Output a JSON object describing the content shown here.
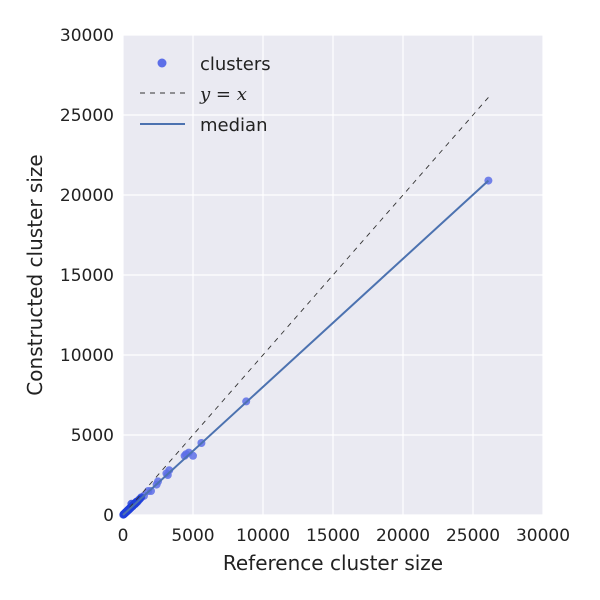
{
  "chart_data": {
    "type": "scatter",
    "xlabel": "Reference cluster size",
    "ylabel": "Constructed cluster size",
    "xlim": [
      0,
      30000
    ],
    "ylim": [
      0,
      30000
    ],
    "xticks": [
      0,
      5000,
      10000,
      15000,
      20000,
      25000,
      30000
    ],
    "yticks": [
      0,
      5000,
      10000,
      15000,
      20000,
      25000,
      30000
    ],
    "grid": true,
    "legend_position": "top-left",
    "colors": {
      "background": "#EAEAF2",
      "grid": "#FFFFFF",
      "points": "#5D6FE8",
      "points_dense": "#1F3FD9",
      "median_line": "#4C72B0",
      "identity_line": "#333333"
    },
    "legend": [
      {
        "label": "clusters",
        "marker": "point"
      },
      {
        "label": "y = x",
        "marker": "dashed-line"
      },
      {
        "label": "median",
        "marker": "solid-line"
      }
    ],
    "series": [
      {
        "name": "clusters",
        "kind": "points",
        "x": [
          26100,
          8800,
          5600,
          5000,
          4700,
          4400,
          4500,
          3300,
          3100,
          3200,
          2500,
          2400,
          2000,
          1800,
          1500,
          1300,
          1200,
          1100,
          1000,
          900,
          850,
          800,
          700,
          650,
          600,
          550,
          500,
          450,
          400,
          350,
          300,
          250,
          200,
          150,
          100,
          60
        ],
        "y": [
          20900,
          7100,
          4500,
          3700,
          3900,
          3700,
          3800,
          2800,
          2600,
          2500,
          2100,
          1900,
          1500,
          1500,
          1200,
          1100,
          1000,
          900,
          800,
          720,
          680,
          650,
          560,
          520,
          700,
          440,
          400,
          360,
          320,
          280,
          240,
          200,
          160,
          120,
          80,
          50
        ]
      },
      {
        "name": "y = x",
        "kind": "dashed-line",
        "x": [
          0,
          26100
        ],
        "y": [
          0,
          26100
        ]
      },
      {
        "name": "median",
        "kind": "line",
        "x": [
          0,
          26100
        ],
        "y": [
          0,
          20900
        ]
      }
    ]
  }
}
